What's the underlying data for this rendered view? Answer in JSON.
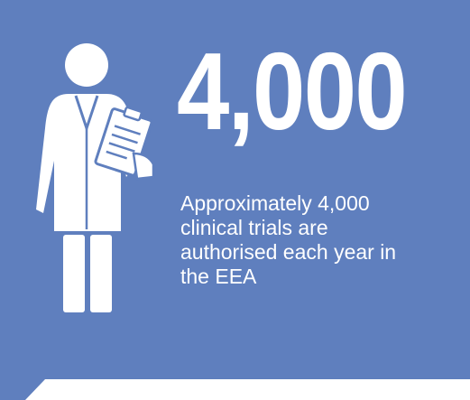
{
  "colors": {
    "panel": "#5f7fbe",
    "background": "#ffffff",
    "text": "#ffffff"
  },
  "icon": "doctor-with-clipboard-icon",
  "headline": "4,000",
  "caption": "Approximately 4,000 clinical trials are authorised each year in the EEA"
}
